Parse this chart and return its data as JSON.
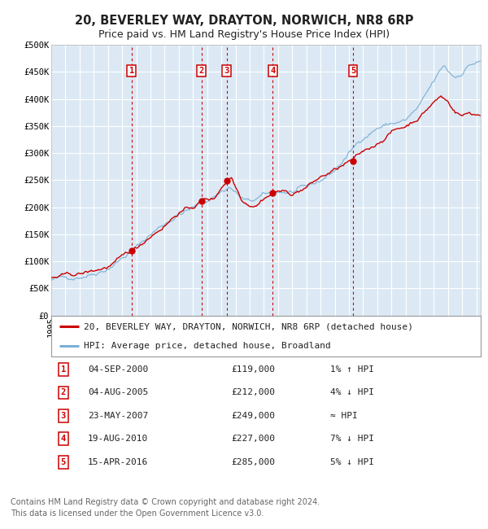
{
  "title1": "20, BEVERLEY WAY, DRAYTON, NORWICH, NR8 6RP",
  "title2": "Price paid vs. HM Land Registry's House Price Index (HPI)",
  "ylim": [
    0,
    500000
  ],
  "yticks": [
    0,
    50000,
    100000,
    150000,
    200000,
    250000,
    300000,
    350000,
    400000,
    450000,
    500000
  ],
  "ytick_labels": [
    "£0",
    "£50K",
    "£100K",
    "£150K",
    "£200K",
    "£250K",
    "£300K",
    "£350K",
    "£400K",
    "£450K",
    "£500K"
  ],
  "xlim_start": 1995.0,
  "xlim_end": 2025.3,
  "background_color": "#dce9f5",
  "grid_color": "#ffffff",
  "red_line_color": "#cc0000",
  "blue_line_color": "#7bafd4",
  "marker_color": "#cc0000",
  "vline_color": "#cc0000",
  "box_color": "#cc0000",
  "transactions": [
    {
      "num": 1,
      "date_str": "04-SEP-2000",
      "date_x": 2000.67,
      "price": 119000,
      "label": "1% ↑ HPI"
    },
    {
      "num": 2,
      "date_str": "04-AUG-2005",
      "date_x": 2005.59,
      "price": 212000,
      "label": "4% ↓ HPI"
    },
    {
      "num": 3,
      "date_str": "23-MAY-2007",
      "date_x": 2007.39,
      "price": 249000,
      "label": "≈ HPI"
    },
    {
      "num": 4,
      "date_str": "19-AUG-2010",
      "date_x": 2010.63,
      "price": 227000,
      "label": "7% ↓ HPI"
    },
    {
      "num": 5,
      "date_str": "15-APR-2016",
      "date_x": 2016.29,
      "price": 285000,
      "label": "5% ↓ HPI"
    }
  ],
  "legend_red_label": "20, BEVERLEY WAY, DRAYTON, NORWICH, NR8 6RP (detached house)",
  "legend_blue_label": "HPI: Average price, detached house, Broadland",
  "footer": "Contains HM Land Registry data © Crown copyright and database right 2024.\nThis data is licensed under the Open Government Licence v3.0.",
  "title1_fontsize": 10.5,
  "title2_fontsize": 9,
  "axis_fontsize": 7.5,
  "legend_fontsize": 8,
  "table_fontsize": 8,
  "footer_fontsize": 7
}
